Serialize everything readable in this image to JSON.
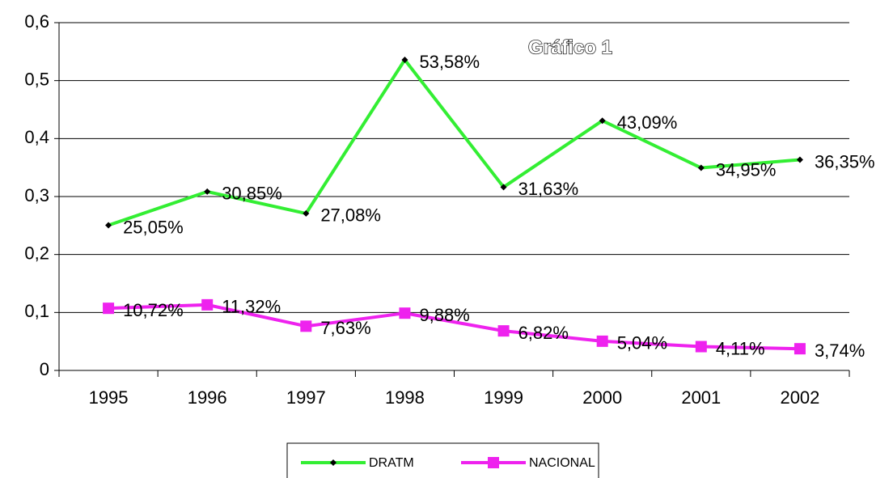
{
  "chart_data": {
    "type": "line",
    "title": "Gráfico 1",
    "categories": [
      "1995",
      "1996",
      "1997",
      "1998",
      "1999",
      "2000",
      "2001",
      "2002"
    ],
    "series": [
      {
        "name": "DRATM",
        "color": "#33ee33",
        "marker": "diamond",
        "values": [
          0.2505,
          0.3085,
          0.2708,
          0.5358,
          0.3163,
          0.4309,
          0.3495,
          0.3635
        ],
        "value_labels": [
          "25,05%",
          "30,85%",
          "27,08%",
          "53,58%",
          "31,63%",
          "43,09%",
          "34,95%",
          "36,35%"
        ]
      },
      {
        "name": "NACIONAL",
        "color": "#ee22ee",
        "marker": "square",
        "values": [
          0.1072,
          0.1132,
          0.0763,
          0.0988,
          0.0682,
          0.0504,
          0.0411,
          0.0374
        ],
        "value_labels": [
          "10,72%",
          "11,32%",
          "7,63%",
          "9,88%",
          "6,82%",
          "5,04%",
          "4,11%",
          "3,74%"
        ]
      }
    ],
    "ylim": [
      0,
      0.6
    ],
    "yticks": [
      0,
      {
        "value": 0.1,
        "label": "0,1"
      },
      {
        "value": 0.2,
        "label": "0,2"
      },
      {
        "value": 0.3,
        "label": "0,3"
      },
      {
        "value": 0.4,
        "label": "0,4"
      },
      {
        "value": 0.5,
        "label": "0,5"
      },
      {
        "value": 0.6,
        "label": "0,6"
      }
    ],
    "grid": true,
    "legend": "bottom"
  }
}
